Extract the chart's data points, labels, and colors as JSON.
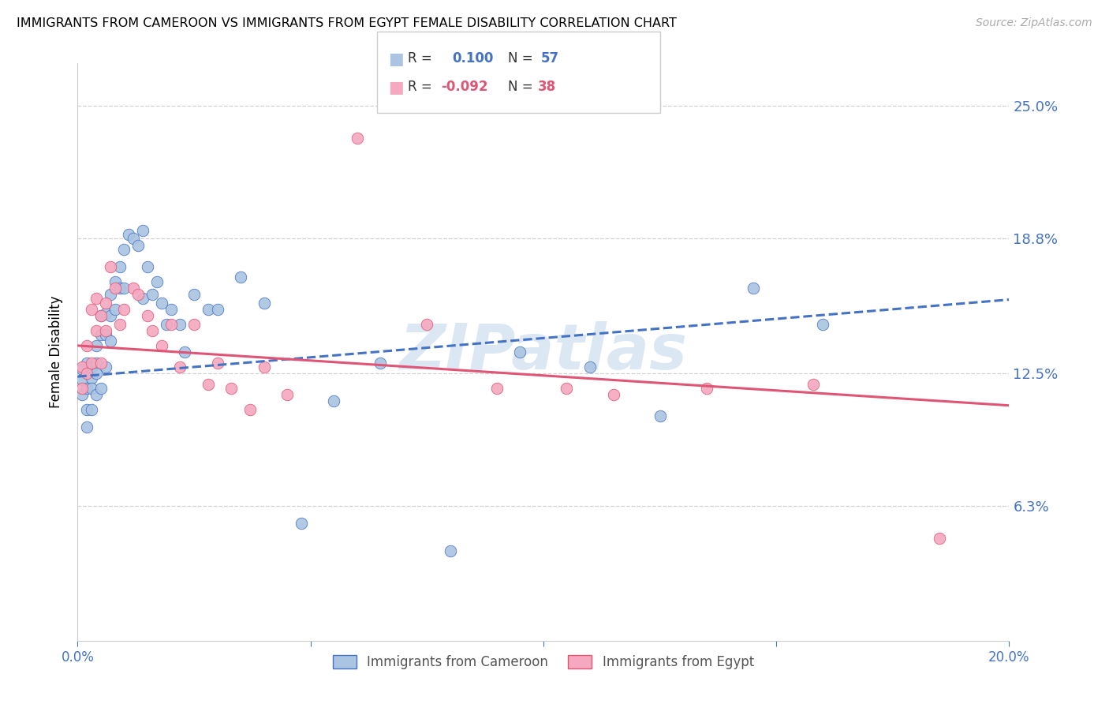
{
  "title": "IMMIGRANTS FROM CAMEROON VS IMMIGRANTS FROM EGYPT FEMALE DISABILITY CORRELATION CHART",
  "source": "Source: ZipAtlas.com",
  "ylabel": "Female Disability",
  "ytick_labels": [
    "25.0%",
    "18.8%",
    "12.5%",
    "6.3%"
  ],
  "ytick_values": [
    0.25,
    0.188,
    0.125,
    0.063
  ],
  "xlim": [
    0.0,
    0.2
  ],
  "ylim": [
    0.0,
    0.27
  ],
  "r_cameroon": 0.1,
  "r_egypt": -0.092,
  "n_cameroon": 57,
  "n_egypt": 38,
  "color_cameroon": "#aac4e2",
  "color_egypt": "#f5a8bf",
  "line_color_cameroon": "#4472c4",
  "line_color_egypt": "#e05575",
  "watermark_color": "#c5d8ee",
  "title_color": "#000000",
  "axis_label_color": "#4472c4",
  "grid_color": "#d0d0d0",
  "cam_intercept": 0.1235,
  "cam_slope": 0.18,
  "egy_intercept": 0.138,
  "egy_slope": -0.14,
  "cameroon_x": [
    0.001,
    0.001,
    0.001,
    0.002,
    0.002,
    0.002,
    0.002,
    0.003,
    0.003,
    0.003,
    0.003,
    0.004,
    0.004,
    0.004,
    0.004,
    0.005,
    0.005,
    0.005,
    0.006,
    0.006,
    0.006,
    0.007,
    0.007,
    0.007,
    0.008,
    0.008,
    0.009,
    0.009,
    0.01,
    0.01,
    0.011,
    0.012,
    0.013,
    0.014,
    0.014,
    0.015,
    0.016,
    0.017,
    0.018,
    0.019,
    0.02,
    0.022,
    0.023,
    0.025,
    0.028,
    0.03,
    0.035,
    0.04,
    0.048,
    0.055,
    0.065,
    0.08,
    0.095,
    0.11,
    0.125,
    0.145,
    0.16
  ],
  "cameroon_y": [
    0.127,
    0.122,
    0.115,
    0.13,
    0.118,
    0.108,
    0.1,
    0.128,
    0.123,
    0.118,
    0.108,
    0.138,
    0.13,
    0.125,
    0.115,
    0.152,
    0.143,
    0.118,
    0.153,
    0.143,
    0.128,
    0.162,
    0.152,
    0.14,
    0.168,
    0.155,
    0.175,
    0.165,
    0.183,
    0.165,
    0.19,
    0.188,
    0.185,
    0.192,
    0.16,
    0.175,
    0.162,
    0.168,
    0.158,
    0.148,
    0.155,
    0.148,
    0.135,
    0.162,
    0.155,
    0.155,
    0.17,
    0.158,
    0.055,
    0.112,
    0.13,
    0.042,
    0.135,
    0.128,
    0.105,
    0.165,
    0.148
  ],
  "egypt_x": [
    0.001,
    0.001,
    0.002,
    0.002,
    0.003,
    0.003,
    0.004,
    0.004,
    0.005,
    0.005,
    0.006,
    0.006,
    0.007,
    0.008,
    0.009,
    0.01,
    0.012,
    0.013,
    0.015,
    0.016,
    0.018,
    0.02,
    0.022,
    0.025,
    0.028,
    0.03,
    0.033,
    0.037,
    0.04,
    0.045,
    0.06,
    0.075,
    0.09,
    0.105,
    0.115,
    0.135,
    0.158,
    0.185
  ],
  "egypt_y": [
    0.128,
    0.118,
    0.138,
    0.125,
    0.155,
    0.13,
    0.16,
    0.145,
    0.152,
    0.13,
    0.158,
    0.145,
    0.175,
    0.165,
    0.148,
    0.155,
    0.165,
    0.162,
    0.152,
    0.145,
    0.138,
    0.148,
    0.128,
    0.148,
    0.12,
    0.13,
    0.118,
    0.108,
    0.128,
    0.115,
    0.235,
    0.148,
    0.118,
    0.118,
    0.115,
    0.118,
    0.12,
    0.048
  ]
}
